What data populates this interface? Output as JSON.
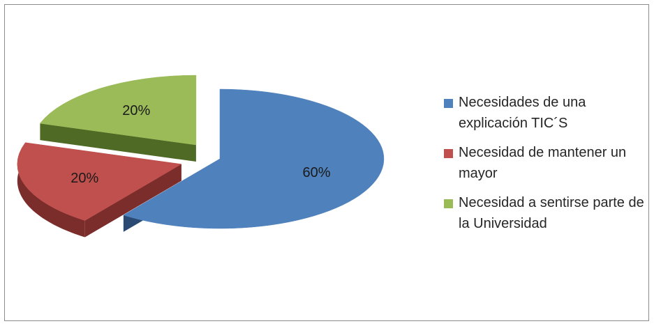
{
  "chart_data": {
    "type": "pie",
    "title": "",
    "series": [
      {
        "name": "Necesidades de una explicación TIC´S",
        "value": 60,
        "label": "60%",
        "color": "#4f81bd",
        "side_color": "#2b4a73"
      },
      {
        "name": "Necesidad de mantener un mayor",
        "value": 20,
        "label": "20%",
        "color": "#c0504d",
        "side_color": "#7b2d2b"
      },
      {
        "name": "Necesidad a sentirse parte de la Universidad",
        "value": 20,
        "label": "20%",
        "color": "#9bbb59",
        "side_color": "#4f6a24"
      }
    ],
    "legend_position": "right",
    "style": "3d-exploded"
  }
}
